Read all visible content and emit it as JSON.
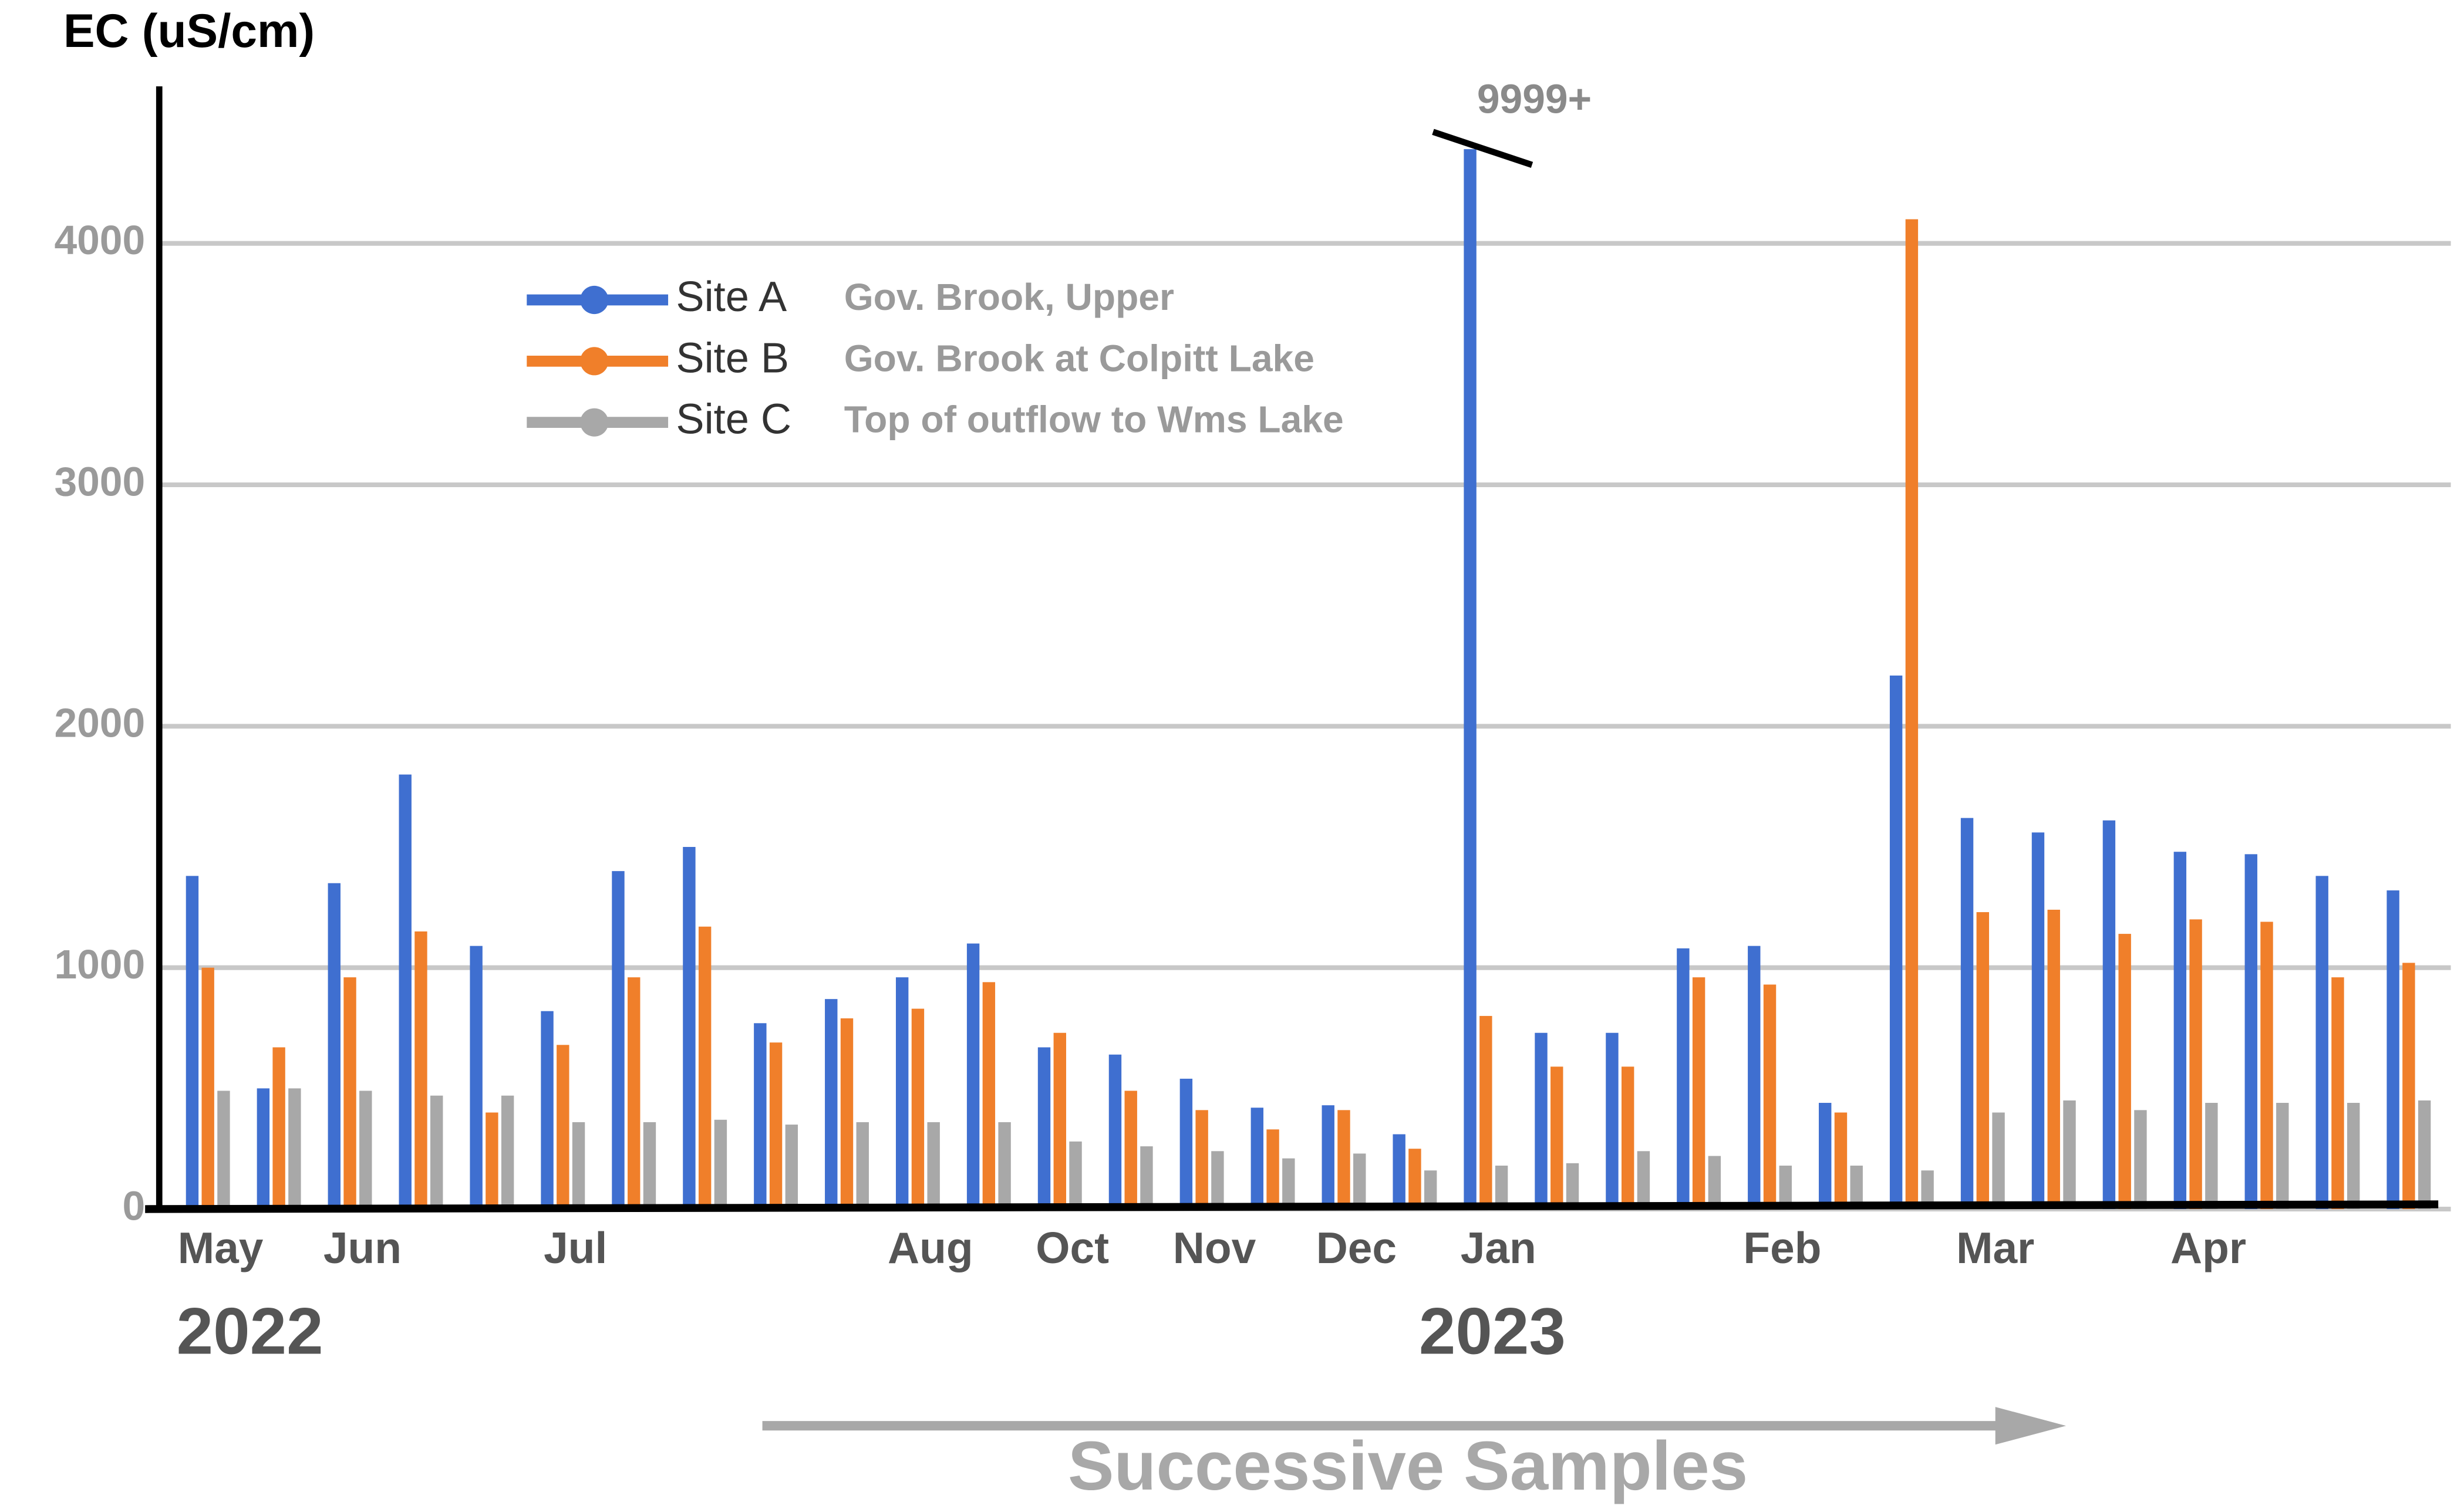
{
  "chart_data": {
    "type": "bar",
    "y_label": "EC (uS/cm)",
    "x_label": "Successive Samples",
    "annotations": [
      "2022",
      "2023"
    ],
    "categories": [
      "May",
      null,
      "Jun",
      null,
      null,
      "Jul",
      null,
      null,
      null,
      null,
      "Aug",
      null,
      "Oct",
      null,
      "Nov",
      null,
      "Dec",
      null,
      "Jan",
      null,
      null,
      null,
      "Feb",
      null,
      null,
      "Mar",
      null,
      null,
      "Apr",
      null,
      null,
      null
    ],
    "ylim": [
      0,
      4650
    ],
    "yticks": [
      0,
      1000,
      2000,
      3000,
      4000
    ],
    "grid": true,
    "legend": "upper-left",
    "series": [
      {
        "name": "Site A",
        "description": "Gov. Brook, Upper",
        "color": "#3f6fd0",
        "values": [
          1380,
          500,
          1350,
          1800,
          1090,
          820,
          1400,
          1500,
          770,
          870,
          960,
          1100,
          670,
          640,
          540,
          420,
          430,
          310,
          9999,
          730,
          730,
          1080,
          1090,
          440,
          2210,
          1620,
          1560,
          1610,
          1480,
          1470,
          1380,
          1320
        ],
        "value_labels": [
          null,
          null,
          null,
          null,
          null,
          null,
          null,
          null,
          null,
          null,
          null,
          null,
          null,
          null,
          null,
          null,
          null,
          null,
          "9999+",
          null,
          null,
          null,
          null,
          null,
          null,
          null,
          null,
          null,
          null,
          null,
          null,
          null
        ]
      },
      {
        "name": "Site B",
        "description": "Gov. Brook at Colpitt Lake",
        "color": "#f07f2a",
        "values": [
          1000,
          670,
          960,
          1150,
          400,
          680,
          960,
          1170,
          690,
          790,
          830,
          940,
          730,
          490,
          410,
          330,
          410,
          250,
          800,
          590,
          590,
          960,
          930,
          400,
          4100,
          1230,
          1240,
          1140,
          1200,
          1190,
          960,
          1020
        ]
      },
      {
        "name": "Site C",
        "description": "Top of outflow to Wms Lake",
        "color": "#a8a8a8",
        "values": [
          490,
          500,
          490,
          470,
          470,
          360,
          360,
          370,
          350,
          360,
          360,
          360,
          280,
          260,
          240,
          210,
          230,
          160,
          180,
          190,
          240,
          220,
          180,
          180,
          160,
          400,
          450,
          410,
          440,
          440,
          440,
          450
        ]
      }
    ]
  }
}
